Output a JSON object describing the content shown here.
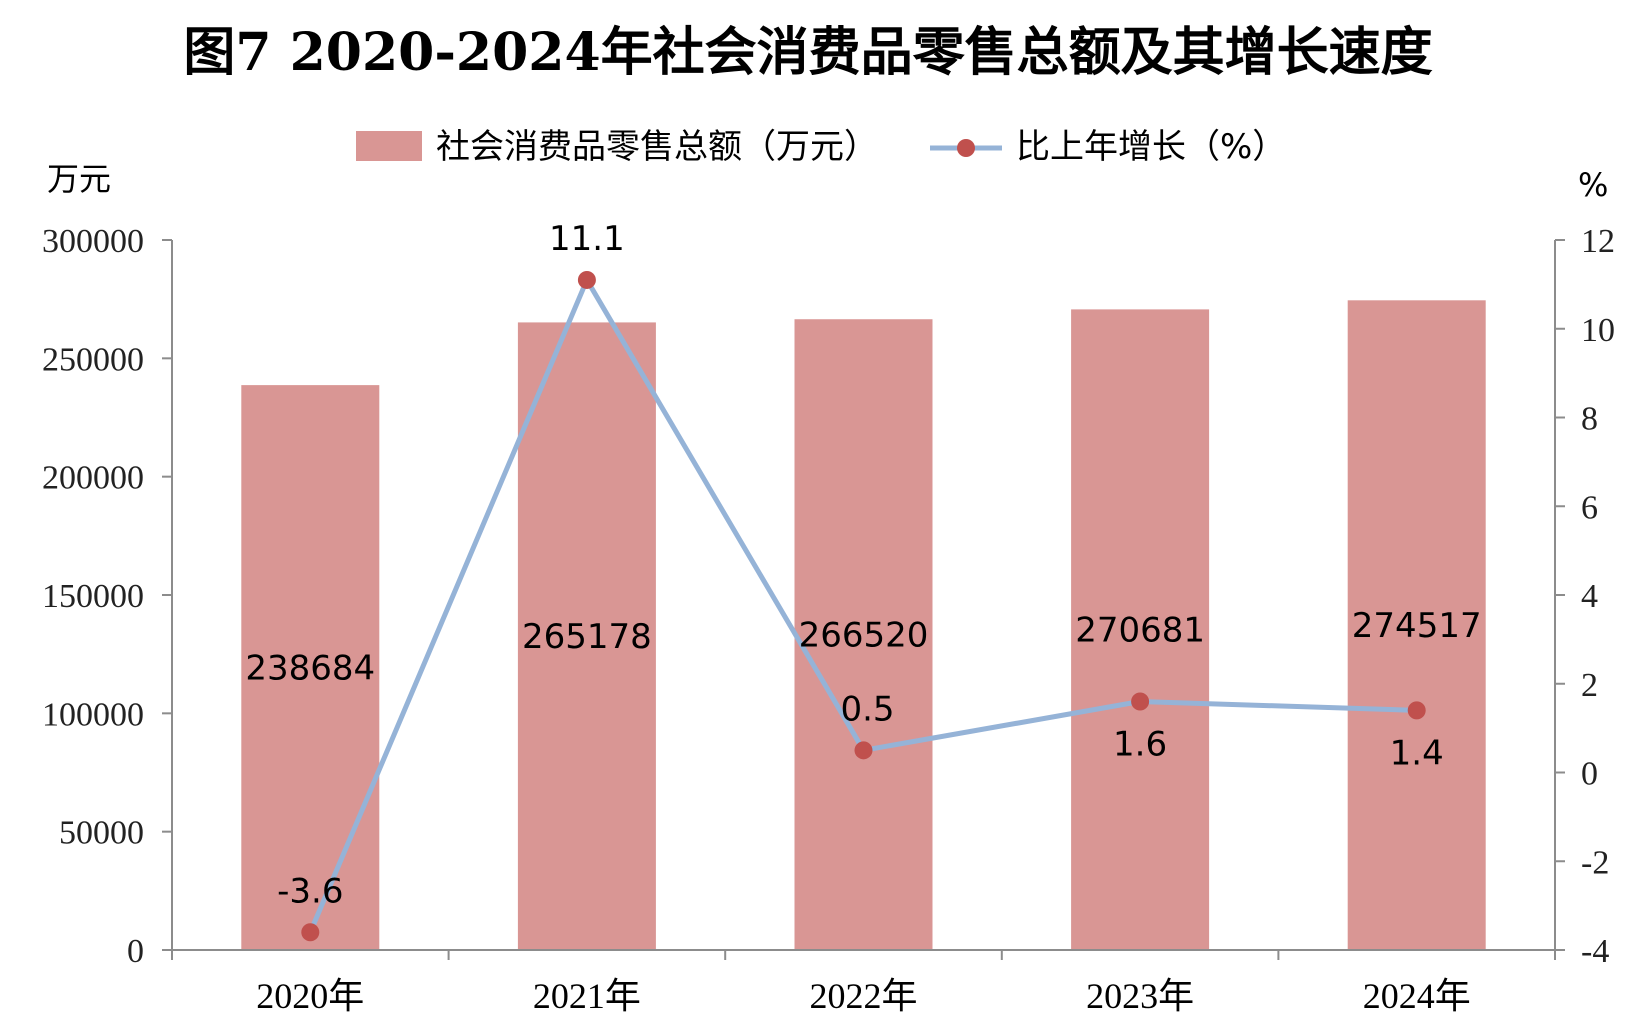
{
  "chart_data": {
    "type": "bar",
    "title": "图7  2020-2024年社会消费品零售总额及其增长速度",
    "categories": [
      "2020年",
      "2021年",
      "2022年",
      "2023年",
      "2024年"
    ],
    "series": [
      {
        "name": "社会消费品零售总额（万元）",
        "type": "bar",
        "axis": "left",
        "color": "#d99694",
        "values": [
          238684,
          265178,
          266520,
          270681,
          274517
        ],
        "labels": [
          "238684",
          "265178",
          "266520",
          "270681",
          "274517"
        ]
      },
      {
        "name": "比上年增长（%）",
        "type": "line",
        "axis": "right",
        "line_color": "#95b3d7",
        "marker_color": "#c0504d",
        "values": [
          -3.6,
          11.1,
          0.5,
          1.6,
          1.4
        ],
        "labels": [
          "-3.6",
          "11.1",
          "0.5",
          "1.6",
          "1.4"
        ]
      }
    ],
    "y_left": {
      "unit": "万元",
      "ylim": [
        0,
        300000
      ],
      "ticks": [
        "0",
        "50000",
        "100000",
        "150000",
        "200000",
        "250000",
        "300000"
      ]
    },
    "y_right": {
      "unit": "%",
      "ylim": [
        -4,
        12
      ],
      "ticks": [
        "-4",
        "-2",
        "0",
        "2",
        "4",
        "6",
        "8",
        "10",
        "12"
      ]
    },
    "legend_position": "top",
    "grid": false
  }
}
